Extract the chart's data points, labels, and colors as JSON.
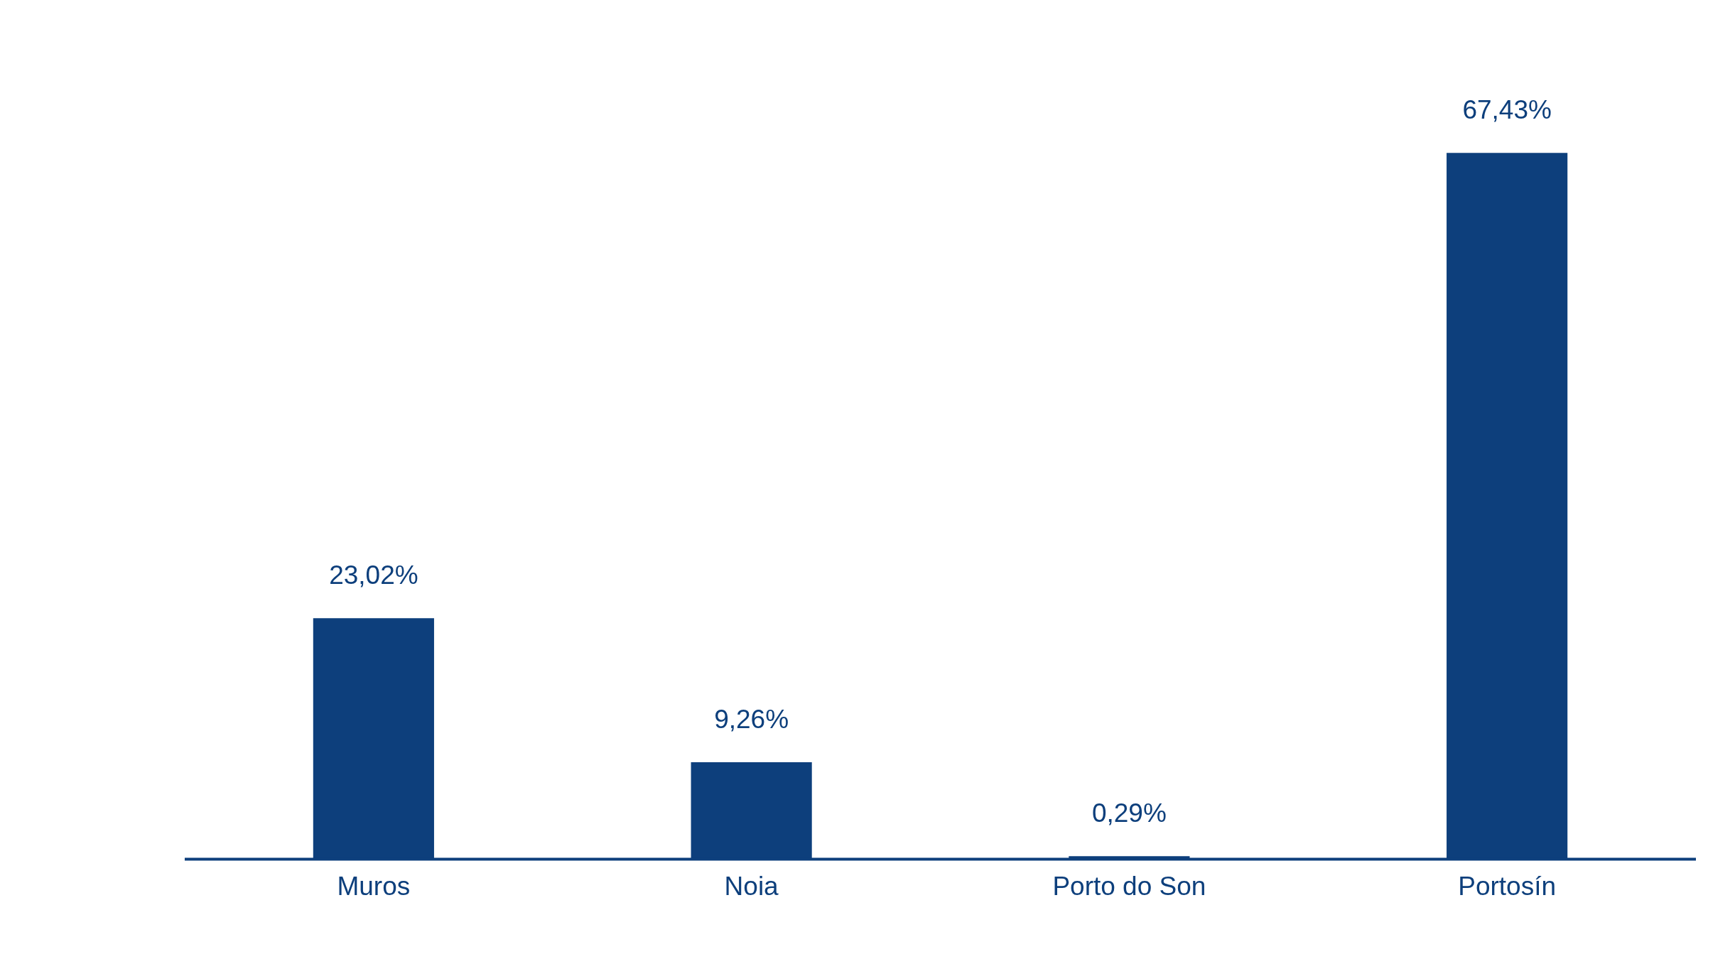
{
  "chart_data": {
    "type": "bar",
    "categories": [
      "Muros",
      "Noia",
      "Porto do Son",
      "Portosín"
    ],
    "values": [
      23.02,
      9.26,
      0.29,
      67.43
    ],
    "value_labels": [
      "23,02%",
      "9,26%",
      "0,29%",
      "67,43%"
    ],
    "color": "#0d3f7c",
    "tick_labels": "x",
    "grid": false,
    "legend": false
  }
}
